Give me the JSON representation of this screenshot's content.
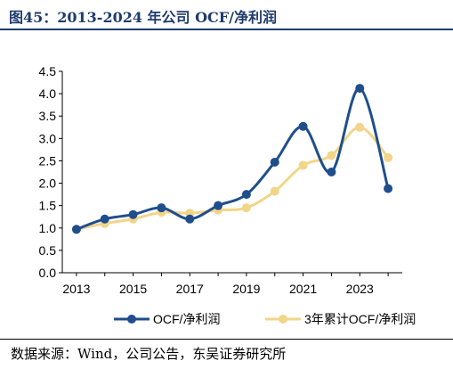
{
  "figure": {
    "title": "图45：2013-2024 年公司 OCF/净利润",
    "source": "数据来源：Wind，公司公告，东吴证券研究所"
  },
  "chart_data": {
    "type": "line",
    "title": "",
    "xlabel": "",
    "ylabel": "",
    "ylim": [
      0.0,
      4.5
    ],
    "yticks": [
      "0.0",
      "0.5",
      "1.0",
      "1.5",
      "2.0",
      "2.5",
      "3.0",
      "3.5",
      "4.0",
      "4.5"
    ],
    "xticks": [
      "2013",
      "2015",
      "2017",
      "2019",
      "2021",
      "2023"
    ],
    "x": [
      2013,
      2014,
      2015,
      2016,
      2017,
      2018,
      2019,
      2020,
      2021,
      2022,
      2023,
      2024
    ],
    "grid": false,
    "legend_position": "bottom",
    "smooth": true,
    "series": [
      {
        "name": "OCF/净利润",
        "color": "#1f4e8c",
        "values": [
          0.97,
          1.2,
          1.3,
          1.45,
          1.2,
          1.5,
          1.75,
          2.47,
          3.27,
          2.25,
          4.12,
          1.88
        ]
      },
      {
        "name": "3年累计OCF/净利润",
        "color": "#f2d58a",
        "values": [
          0.97,
          1.1,
          1.2,
          1.35,
          1.33,
          1.4,
          1.45,
          1.82,
          2.4,
          2.62,
          3.25,
          2.57
        ]
      }
    ]
  }
}
